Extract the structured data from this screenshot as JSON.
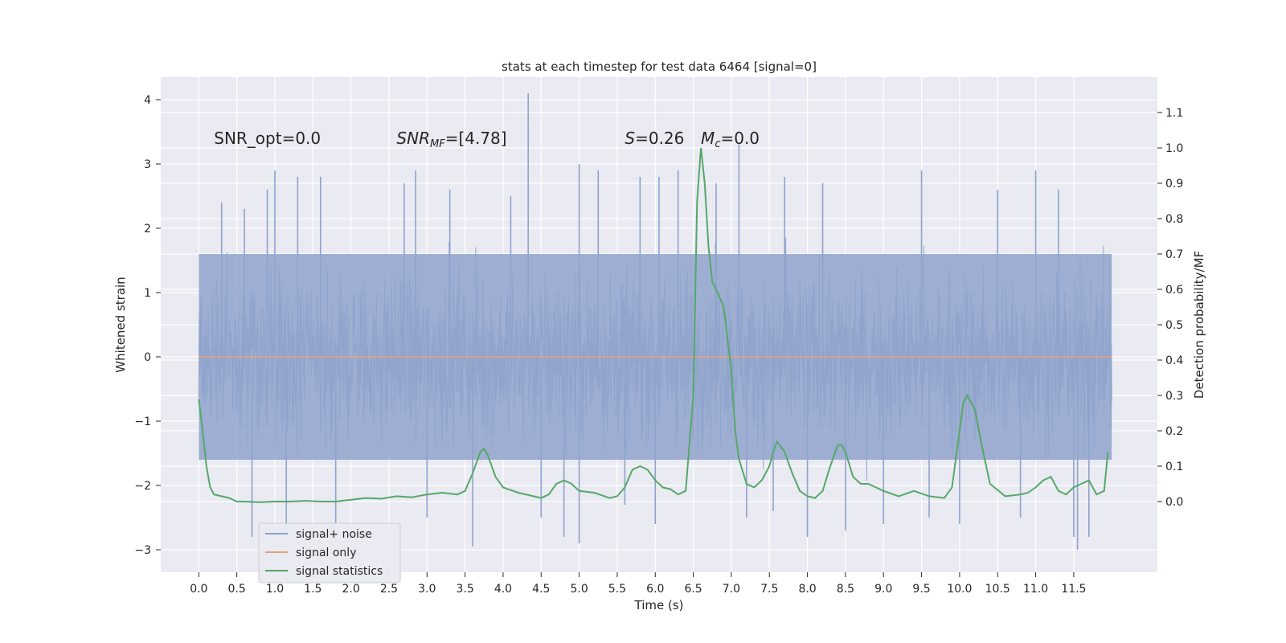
{
  "chart_data": {
    "type": "line",
    "title": "stats at each timestep for test data 6464 [signal=0]",
    "xlabel": "Time (s)",
    "ylabel": "Whitened strain",
    "y2label": "Detection probability/MF",
    "xlim": [
      -0.5,
      12.6
    ],
    "ylim": [
      -3.35,
      4.35
    ],
    "y2lim": [
      -0.2,
      1.2
    ],
    "xticks": [
      0.0,
      0.5,
      1.0,
      1.5,
      2.0,
      2.5,
      3.0,
      3.5,
      4.0,
      4.5,
      5.0,
      5.5,
      6.0,
      6.5,
      7.0,
      7.5,
      8.0,
      8.5,
      9.0,
      9.5,
      10.0,
      10.5,
      11.0,
      11.5
    ],
    "xtick_labels": [
      "0.0",
      "0.5",
      "1.0",
      "1.5",
      "2.0",
      "2.5",
      "3.0",
      "3.5",
      "4.0",
      "4.5",
      "5.0",
      "5.5",
      "6.0",
      "6.5",
      "7.0",
      "7.5",
      "8.0",
      "8.5",
      "9.0",
      "9.5",
      "10.0",
      "10.5",
      "11.0",
      "11.5"
    ],
    "yticks": [
      -3,
      -2,
      -1,
      0,
      1,
      2,
      3,
      4
    ],
    "ytick_labels": [
      "−3",
      "−2",
      "−1",
      "0",
      "1",
      "2",
      "3",
      "4"
    ],
    "y2ticks": [
      0.0,
      0.1,
      0.2,
      0.3,
      0.4,
      0.5,
      0.6,
      0.7,
      0.8,
      0.9,
      1.0,
      1.1
    ],
    "y2tick_labels": [
      "0.0",
      "0.1",
      "0.2",
      "0.3",
      "0.4",
      "0.5",
      "0.6",
      "0.7",
      "0.8",
      "0.9",
      "1.0",
      "1.1"
    ],
    "grid": true,
    "legend_position": "lower-left",
    "annotations": [
      {
        "text": "SNR_opt=0.0",
        "x": 0.2,
        "y": 3.4
      },
      {
        "text": "SNR_MF=[4.78]",
        "x": 2.6,
        "y": 3.4
      },
      {
        "text": "S=0.26",
        "x": 5.6,
        "y": 3.4
      },
      {
        "text": "M_c=0.0",
        "x": 6.6,
        "y": 3.4
      }
    ],
    "series": [
      {
        "name": "signal+ noise",
        "axis": "left",
        "color": "#8fa3cc",
        "kind": "noise",
        "x_start": 0.0,
        "x_end": 12.0,
        "typical_range": [
          -1.6,
          1.6
        ],
        "envelope": [
          -2.7,
          2.6
        ],
        "spikes": [
          {
            "x": 0.3,
            "y": 2.4
          },
          {
            "x": 0.6,
            "y": 2.3
          },
          {
            "x": 0.7,
            "y": -2.8
          },
          {
            "x": 0.9,
            "y": 2.6
          },
          {
            "x": 1.0,
            "y": 2.9
          },
          {
            "x": 1.15,
            "y": -2.7
          },
          {
            "x": 1.3,
            "y": 2.8
          },
          {
            "x": 1.6,
            "y": 2.8
          },
          {
            "x": 1.8,
            "y": -2.6
          },
          {
            "x": 2.7,
            "y": 2.7
          },
          {
            "x": 2.85,
            "y": 2.9
          },
          {
            "x": 3.0,
            "y": -2.5
          },
          {
            "x": 3.3,
            "y": 2.6
          },
          {
            "x": 3.6,
            "y": -2.95
          },
          {
            "x": 4.1,
            "y": 2.5
          },
          {
            "x": 4.33,
            "y": 4.1
          },
          {
            "x": 4.5,
            "y": -2.5
          },
          {
            "x": 4.8,
            "y": -2.8
          },
          {
            "x": 5.0,
            "y": 3.0
          },
          {
            "x": 5.0,
            "y": -2.9
          },
          {
            "x": 5.25,
            "y": 2.9
          },
          {
            "x": 5.6,
            "y": -2.3
          },
          {
            "x": 5.8,
            "y": 2.8
          },
          {
            "x": 6.05,
            "y": 2.8
          },
          {
            "x": 6.0,
            "y": -2.6
          },
          {
            "x": 6.3,
            "y": 2.9
          },
          {
            "x": 6.8,
            "y": 2.7
          },
          {
            "x": 7.1,
            "y": 3.3
          },
          {
            "x": 7.2,
            "y": -2.5
          },
          {
            "x": 7.55,
            "y": -2.4
          },
          {
            "x": 7.7,
            "y": 2.8
          },
          {
            "x": 8.0,
            "y": -2.8
          },
          {
            "x": 8.2,
            "y": 2.7
          },
          {
            "x": 8.5,
            "y": -2.7
          },
          {
            "x": 9.0,
            "y": -2.6
          },
          {
            "x": 9.5,
            "y": 2.9
          },
          {
            "x": 9.6,
            "y": -2.5
          },
          {
            "x": 10.0,
            "y": -2.6
          },
          {
            "x": 10.5,
            "y": 2.6
          },
          {
            "x": 10.8,
            "y": -2.5
          },
          {
            "x": 11.0,
            "y": 2.9
          },
          {
            "x": 11.3,
            "y": 2.6
          },
          {
            "x": 11.5,
            "y": -2.8
          },
          {
            "x": 11.55,
            "y": -3.0
          },
          {
            "x": 11.7,
            "y": -2.8
          }
        ]
      },
      {
        "name": "signal only",
        "axis": "left",
        "color": "#e0a184",
        "kind": "line",
        "x": [
          0.0,
          12.0
        ],
        "y": [
          0.0,
          0.0
        ]
      },
      {
        "name": "signal statistics",
        "axis": "right",
        "color": "#55a868",
        "kind": "line",
        "x": [
          0.0,
          0.05,
          0.1,
          0.15,
          0.2,
          0.3,
          0.4,
          0.5,
          0.6,
          0.8,
          1.0,
          1.2,
          1.4,
          1.6,
          1.8,
          2.0,
          2.2,
          2.4,
          2.6,
          2.8,
          3.0,
          3.2,
          3.4,
          3.5,
          3.6,
          3.7,
          3.75,
          3.8,
          3.9,
          4.0,
          4.2,
          4.4,
          4.5,
          4.6,
          4.7,
          4.8,
          4.9,
          5.0,
          5.2,
          5.4,
          5.5,
          5.6,
          5.7,
          5.8,
          5.9,
          6.0,
          6.1,
          6.2,
          6.3,
          6.4,
          6.5,
          6.55,
          6.6,
          6.65,
          6.7,
          6.75,
          6.8,
          6.9,
          7.0,
          7.05,
          7.1,
          7.2,
          7.3,
          7.4,
          7.5,
          7.55,
          7.6,
          7.7,
          7.8,
          7.9,
          8.0,
          8.1,
          8.2,
          8.3,
          8.4,
          8.45,
          8.5,
          8.6,
          8.7,
          8.8,
          9.0,
          9.2,
          9.4,
          9.6,
          9.8,
          9.9,
          10.0,
          10.05,
          10.1,
          10.2,
          10.3,
          10.4,
          10.6,
          10.8,
          10.9,
          11.0,
          11.1,
          11.2,
          11.3,
          11.4,
          11.5,
          11.6,
          11.7,
          11.8,
          11.9,
          11.95
        ],
        "y": [
          0.29,
          0.2,
          0.1,
          0.04,
          0.02,
          0.015,
          0.01,
          0.0,
          0.0,
          -0.002,
          0.0,
          0.0,
          0.002,
          0.0,
          0.0,
          0.005,
          0.01,
          0.008,
          0.015,
          0.012,
          0.02,
          0.025,
          0.02,
          0.03,
          0.08,
          0.14,
          0.15,
          0.13,
          0.07,
          0.04,
          0.025,
          0.015,
          0.01,
          0.02,
          0.05,
          0.06,
          0.05,
          0.03,
          0.025,
          0.01,
          0.015,
          0.04,
          0.09,
          0.1,
          0.09,
          0.06,
          0.04,
          0.035,
          0.02,
          0.03,
          0.3,
          0.85,
          1.0,
          0.9,
          0.72,
          0.62,
          0.6,
          0.55,
          0.37,
          0.2,
          0.12,
          0.05,
          0.04,
          0.06,
          0.1,
          0.14,
          0.17,
          0.14,
          0.08,
          0.03,
          0.015,
          0.01,
          0.03,
          0.1,
          0.16,
          0.16,
          0.14,
          0.07,
          0.05,
          0.05,
          0.03,
          0.015,
          0.03,
          0.015,
          0.01,
          0.04,
          0.2,
          0.28,
          0.3,
          0.26,
          0.15,
          0.05,
          0.015,
          0.02,
          0.025,
          0.04,
          0.06,
          0.07,
          0.03,
          0.02,
          0.04,
          0.05,
          0.06,
          0.02,
          0.03,
          0.14
        ]
      }
    ]
  }
}
